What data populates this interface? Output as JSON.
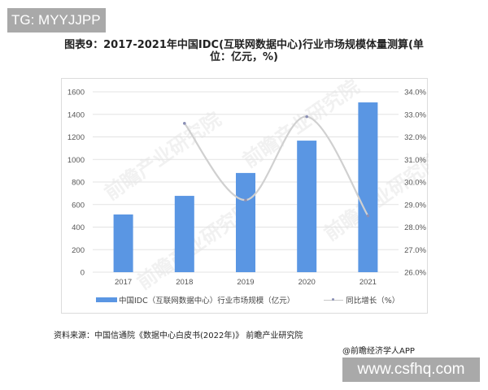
{
  "badges": {
    "top_left": "TG: MYYJJPP",
    "bottom_right": "www.csfhq.com"
  },
  "title": {
    "line1": "图表9：2017-2021年中国IDC(互联网数据中心)行业市场规模体量测算(单",
    "line2": "位：亿元，%)"
  },
  "watermark": "前瞻产业研究院",
  "legend": {
    "bar_label": "中国IDC（互联网数据中心）行业市场规模（亿元）",
    "line_label": "同比增长（%）"
  },
  "source": "资料来源：中国信通院《数据中心白皮书(2022年)》 前瞻产业研究院",
  "credit": "@前瞻经济学人APP",
  "colors": {
    "bar": "#5a96e3",
    "line": "#d0d0d0",
    "marker": "#8a8fb5",
    "grid": "#e3e3e3"
  },
  "chart_data": {
    "type": "bar",
    "title": "图表9：2017-2021年中国IDC(互联网数据中心)行业市场规模体量测算(单位：亿元，%)",
    "categories": [
      "2017",
      "2018",
      "2019",
      "2020",
      "2021"
    ],
    "series": [
      {
        "name": "中国IDC（互联网数据中心）行业市场规模（亿元）",
        "type": "bar",
        "axis": "left",
        "values": [
          512,
          677,
          880,
          1167,
          1506
        ]
      },
      {
        "name": "同比增长（%）",
        "type": "line",
        "axis": "right",
        "smooth": true,
        "values": [
          null,
          32.6,
          29.2,
          32.9,
          28.5
        ]
      }
    ],
    "xlabel": "",
    "ylabel": "",
    "ylim": [
      0,
      1600
    ],
    "yticks": [
      "0",
      "200",
      "400",
      "600",
      "800",
      "1000",
      "1200",
      "1400",
      "1600"
    ],
    "y2lim": [
      26.0,
      34.0
    ],
    "y2ticks": [
      "26.0%",
      "27.0%",
      "28.0%",
      "29.0%",
      "30.0%",
      "31.0%",
      "32.0%",
      "33.0%",
      "34.0%"
    ],
    "grid": true,
    "legend_position": "bottom"
  }
}
